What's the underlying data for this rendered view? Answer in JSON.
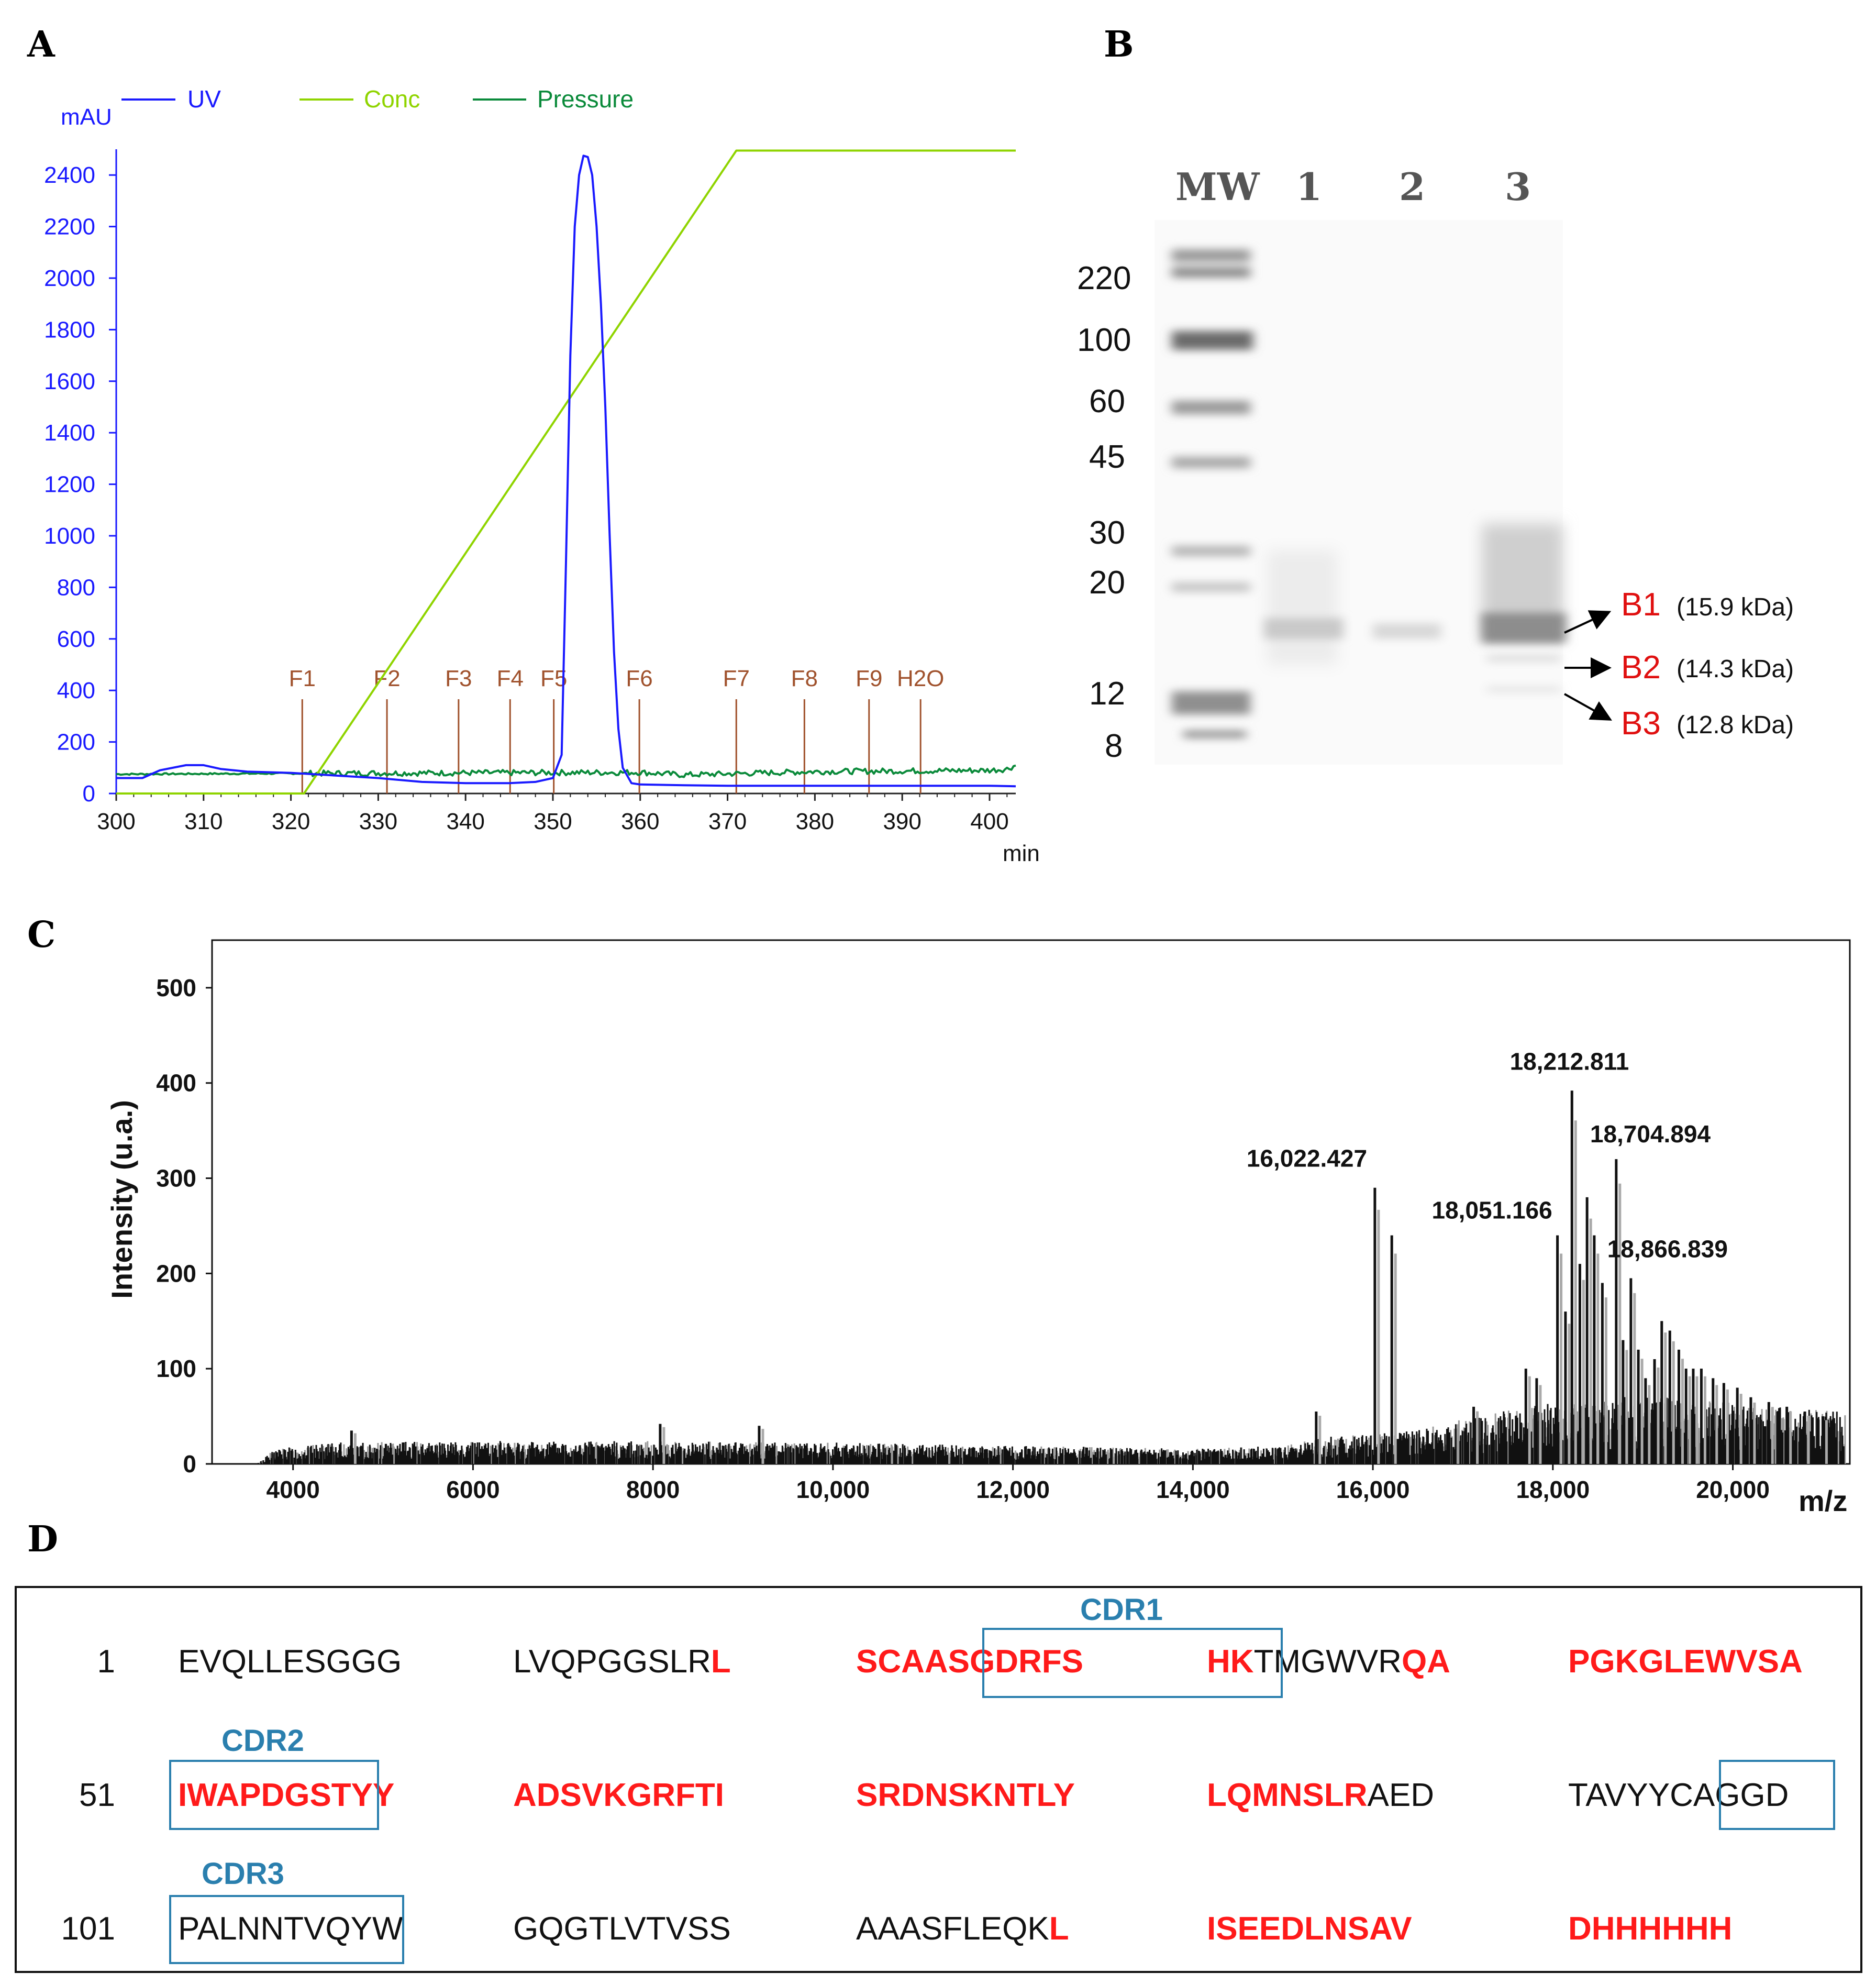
{
  "panelA": {
    "letter": "A",
    "y_unit": "mAU",
    "x_unit": "min",
    "legend": [
      {
        "name": "UV",
        "color": "#1a1aff"
      },
      {
        "name": "Conc",
        "color": "#8fd400"
      },
      {
        "name": "Pressure",
        "color": "#0a8a3a"
      }
    ],
    "fractions": [
      {
        "label": "F1",
        "t": 321.3
      },
      {
        "label": "F2",
        "t": 331.0
      },
      {
        "label": "F3",
        "t": 339.2
      },
      {
        "label": "F4",
        "t": 345.1
      },
      {
        "label": "F5",
        "t": 350.1
      },
      {
        "label": "F6",
        "t": 359.9
      },
      {
        "label": "F7",
        "t": 371.0
      },
      {
        "label": "F8",
        "t": 378.8
      },
      {
        "label": "F9",
        "t": 386.2
      },
      {
        "label": "H2O",
        "t": 392.1
      }
    ]
  },
  "panelB": {
    "letter": "B",
    "lanes": [
      "MW",
      "1",
      "2",
      "3"
    ],
    "mw_markers": [
      "220",
      "100",
      "60",
      "45",
      "30",
      "20",
      "12",
      "8"
    ],
    "bands": [
      {
        "code": "B1",
        "kda": "(15.9 kDa)"
      },
      {
        "code": "B2",
        "kda": "(14.3 kDa)"
      },
      {
        "code": "B3",
        "kda": "(12.8 kDa)"
      }
    ]
  },
  "panelC": {
    "letter": "C",
    "x_label": "m/z",
    "y_label": "Intensity (u.a.)",
    "peaks": [
      {
        "label": "16,022.427",
        "mz": 16022.427
      },
      {
        "label": "18,051.166",
        "mz": 18051.166
      },
      {
        "label": "18,212.811",
        "mz": 18212.811
      },
      {
        "label": "18,704.894",
        "mz": 18704.894
      },
      {
        "label": "18,866.839",
        "mz": 18866.839
      }
    ]
  },
  "panelD": {
    "letter": "D",
    "rows": [
      {
        "num": "1",
        "blocks": [
          [
            [
              "EVQLLESGGG",
              "k"
            ]
          ],
          [
            [
              "LVQPGGSLR",
              "k"
            ],
            [
              "L",
              "r"
            ]
          ],
          [
            [
              "SCAASGDRFS",
              "r"
            ]
          ],
          [
            [
              "HK",
              "r"
            ],
            [
              "TMGWVR",
              "k"
            ],
            [
              "QA",
              "r"
            ]
          ],
          [
            [
              "PGKGLEWVSA",
              "r"
            ]
          ]
        ]
      },
      {
        "num": "51",
        "blocks": [
          [
            [
              "IWAPDGSTYY",
              "r"
            ]
          ],
          [
            [
              "ADSVKGRFTI",
              "r"
            ]
          ],
          [
            [
              "SRDNSKNTLY",
              "r"
            ]
          ],
          [
            [
              "LQMNSLR",
              "r"
            ],
            [
              "AED",
              "k"
            ]
          ],
          [
            [
              "TAVYYCAGGD",
              "k"
            ]
          ]
        ]
      },
      {
        "num": "101",
        "blocks": [
          [
            [
              "PALNNTVQYW",
              "k"
            ]
          ],
          [
            [
              "GQGTLVTVSS",
              "k"
            ]
          ],
          [
            [
              "AAASFLEQK",
              "k"
            ],
            [
              "L",
              "r"
            ]
          ],
          [
            [
              "ISEEDLNSAV",
              "r"
            ]
          ],
          [
            [
              "DHHHHHH",
              "r"
            ]
          ]
        ]
      }
    ],
    "cdrs": [
      "CDR1",
      "CDR2",
      "CDR3"
    ]
  },
  "chart_data": [
    {
      "type": "line",
      "title": "",
      "xlabel": "min",
      "ylabel": "mAU",
      "xlim": [
        300,
        403
      ],
      "ylim": [
        0,
        2500
      ],
      "x_ticks": [
        300,
        310,
        320,
        330,
        340,
        350,
        360,
        370,
        380,
        390,
        400
      ],
      "y_ticks": [
        0,
        200,
        400,
        600,
        800,
        1000,
        1200,
        1400,
        1600,
        1800,
        2000,
        2200,
        2400
      ],
      "series": [
        {
          "name": "UV",
          "color": "#1a1aff",
          "x": [
            300,
            303,
            305,
            308,
            310,
            312,
            315,
            320,
            325,
            330,
            335,
            340,
            345,
            348,
            350,
            351,
            351.5,
            352,
            352.5,
            353,
            353.5,
            354,
            354.5,
            355,
            355.5,
            356,
            356.5,
            357,
            357.5,
            358,
            359,
            360,
            365,
            370,
            375,
            380,
            385,
            390,
            395,
            400,
            403
          ],
          "y": [
            60,
            60,
            90,
            110,
            110,
            95,
            85,
            80,
            70,
            60,
            45,
            40,
            40,
            45,
            60,
            150,
            900,
            1700,
            2200,
            2400,
            2475,
            2470,
            2400,
            2200,
            1900,
            1500,
            1000,
            550,
            250,
            100,
            40,
            35,
            32,
            30,
            30,
            30,
            30,
            30,
            30,
            30,
            28
          ]
        },
        {
          "name": "Conc",
          "color": "#8fd400",
          "x": [
            300,
            321.5,
            371,
            403
          ],
          "y": [
            0,
            0,
            2495,
            2495
          ]
        },
        {
          "name": "Pressure",
          "color": "#0a8a3a",
          "x": [
            300,
            320,
            340,
            360,
            365,
            380,
            400,
            402,
            403
          ],
          "y": [
            75,
            78,
            80,
            82,
            72,
            85,
            90,
            95,
            110
          ]
        }
      ],
      "fraction_markers": [
        "F1",
        "F2",
        "F3",
        "F4",
        "F5",
        "F6",
        "F7",
        "F8",
        "F9",
        "H2O"
      ]
    },
    {
      "type": "bar",
      "title": "",
      "xlabel": "m/z",
      "ylabel": "Intensity (u.a.)",
      "xlim": [
        3100,
        21300
      ],
      "ylim": [
        0,
        550
      ],
      "x_ticks": [
        4000,
        6000,
        8000,
        10000,
        12000,
        14000,
        16000,
        18000,
        20000
      ],
      "x_tick_labels": [
        "4000",
        "6000",
        "8000",
        "10,000",
        "12,000",
        "14,000",
        "16,000",
        "18,000",
        "20,000"
      ],
      "y_ticks": [
        0,
        100,
        200,
        300,
        400,
        500
      ],
      "major_peaks": {
        "mz": [
          4650,
          8080,
          9180,
          15370,
          16022,
          16210,
          17120,
          17700,
          17820,
          18051,
          18140,
          18212,
          18300,
          18380,
          18460,
          18550,
          18704,
          18780,
          18867,
          18950,
          19030,
          19130,
          19210,
          19300,
          19400,
          19480,
          19560,
          19650,
          19780,
          19900,
          20050,
          20200,
          20400,
          20600,
          20800,
          21000
        ],
        "intensity": [
          35,
          42,
          40,
          55,
          290,
          240,
          60,
          100,
          90,
          240,
          160,
          392,
          210,
          280,
          240,
          190,
          320,
          130,
          195,
          120,
          90,
          110,
          150,
          140,
          120,
          100,
          100,
          100,
          90,
          85,
          80,
          70,
          65,
          60,
          55,
          50
        ]
      },
      "noise_floor": {
        "mz": [
          3100,
          3600,
          3800,
          4500,
          6000,
          8000,
          10000,
          12000,
          14000,
          15000,
          15500,
          16500,
          17000,
          18000,
          19000,
          20000,
          21300
        ],
        "intensity": [
          0,
          0,
          10,
          14,
          15,
          15,
          14,
          12,
          10,
          12,
          18,
          22,
          30,
          40,
          45,
          40,
          35
        ]
      }
    }
  ]
}
